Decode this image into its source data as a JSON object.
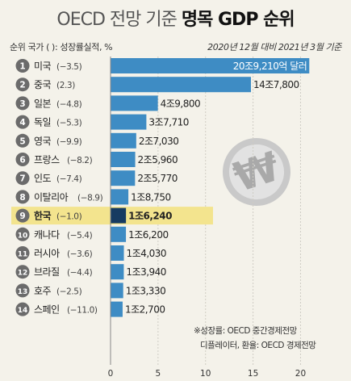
{
  "colors": {
    "background": "#f4f2ea",
    "bar": "#3e8cc4",
    "highlight_bar": "#163b61",
    "highlight_row": "#f3e48e",
    "badge": "#6b6b6b"
  },
  "title_prefix": "OECD 전망 기준",
  "title_bold": "명목 GDP 순위",
  "header_left": "순위 국가  (  ): 성장률실적, %",
  "header_right": "2020년 12월 대비 2021년 3월 기준",
  "notes": [
    "※성장률: OECD 중간경제전망",
    "디플레이터, 환율: OECD 경제전망"
  ],
  "watermark_icon": "won-sign-icon",
  "chart_data": {
    "type": "bar",
    "orientation": "horizontal",
    "xlim": [
      0,
      22
    ],
    "xticks": [
      0,
      5,
      10,
      15,
      20
    ],
    "highlight_rank": 9,
    "rows": [
      {
        "rank": "1",
        "country": "미국",
        "growth": "(−3.5)",
        "value": 20.921,
        "label": "20조9,210억 달러"
      },
      {
        "rank": "2",
        "country": "중국",
        "growth": "(2.3)",
        "value": 14.78,
        "label": "14조7,800"
      },
      {
        "rank": "3",
        "country": "일본",
        "growth": "(−4.8)",
        "value": 4.98,
        "label": "4조9,800"
      },
      {
        "rank": "4",
        "country": "독일",
        "growth": "(−5.3)",
        "value": 3.771,
        "label": "3조7,710"
      },
      {
        "rank": "5",
        "country": "영국",
        "growth": "(−9.9)",
        "value": 2.703,
        "label": "2조7,030"
      },
      {
        "rank": "6",
        "country": "프랑스",
        "growth": "(−8.2)",
        "value": 2.596,
        "label": "2조5,960"
      },
      {
        "rank": "7",
        "country": "인도",
        "growth": "(−7.4)",
        "value": 2.577,
        "label": "2조5,770"
      },
      {
        "rank": "8",
        "country": "이탈리아",
        "growth": "(−8.9)",
        "value": 1.875,
        "label": "1조8,750"
      },
      {
        "rank": "9",
        "country": "한국",
        "growth": "(−1.0)",
        "value": 1.624,
        "label": "1조6,240"
      },
      {
        "rank": "10",
        "country": "캐나다",
        "growth": "(−5.4)",
        "value": 1.62,
        "label": "1조6,200"
      },
      {
        "rank": "11",
        "country": "러시아",
        "growth": "(−3.6)",
        "value": 1.403,
        "label": "1조4,030"
      },
      {
        "rank": "12",
        "country": "브라질",
        "growth": "(−4.4)",
        "value": 1.394,
        "label": "1조3,940"
      },
      {
        "rank": "13",
        "country": "호주",
        "growth": "(−2.5)",
        "value": 1.333,
        "label": "1조3,330"
      },
      {
        "rank": "14",
        "country": "스페인",
        "growth": "(−11.0)",
        "value": 1.27,
        "label": "1조2,700"
      }
    ]
  }
}
